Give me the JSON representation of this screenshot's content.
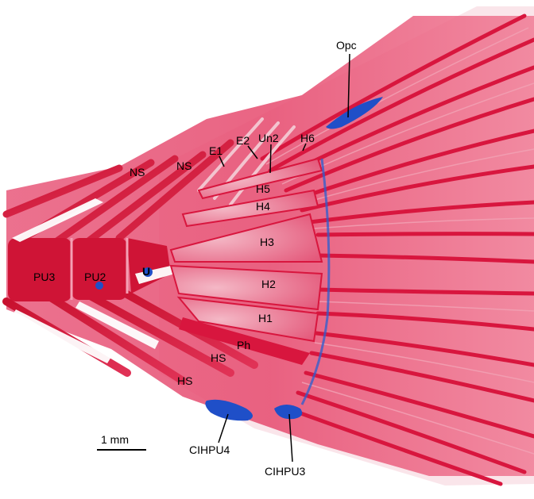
{
  "labels": {
    "opc": "Opc",
    "e1": "E1",
    "e2": "E2",
    "un2": "Un2",
    "h6": "H6",
    "ns1": "NS",
    "ns2": "NS",
    "h5": "H5",
    "h4": "H4",
    "h3": "H3",
    "pu3": "PU3",
    "pu2": "PU2",
    "u": "U",
    "h2": "H2",
    "h1": "H1",
    "ph": "Ph",
    "hs1": "HS",
    "hs2": "HS",
    "cihpu4": "CIHPU4",
    "cihpu3": "CIHPU3"
  },
  "scale_bar": {
    "label": "1 mm"
  },
  "colors": {
    "bone_stain": "#d8163e",
    "bone_light": "#ee8aa0",
    "cartilage_stain": "#1f4fc8",
    "background": "#ffffff"
  }
}
